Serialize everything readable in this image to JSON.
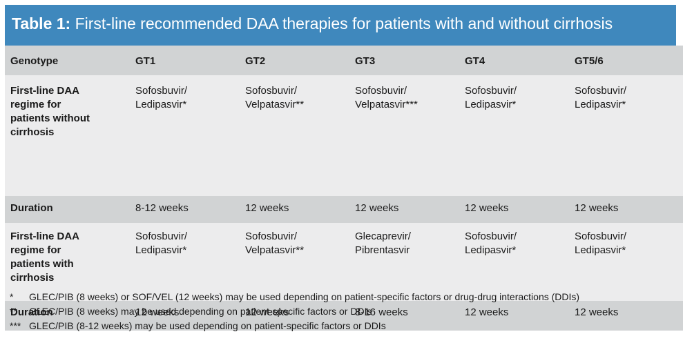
{
  "title": {
    "label": "Table 1:",
    "text": "First-line recommended DAA therapies for patients with and without cirrhosis"
  },
  "table": {
    "headers": [
      "Genotype",
      "GT1",
      "GT2",
      "GT3",
      "GT4",
      "GT5/6"
    ],
    "rows": [
      {
        "label": [
          "First-line DAA",
          "regime for",
          "patients without",
          "cirrhosis"
        ],
        "cells": [
          [
            "Sofosbuvir/",
            "Ledipasvir*"
          ],
          [
            "Sofosbuvir/",
            "Velpatasvir**"
          ],
          [
            "Sofosbuvir/",
            "Velpatasvir***"
          ],
          [
            "Sofosbuvir/",
            "Ledipasvir*"
          ],
          [
            "Sofosbuvir/",
            "Ledipasvir*"
          ]
        ]
      },
      {
        "label": [
          "Duration"
        ],
        "cells": [
          [
            "8-12 weeks"
          ],
          [
            "12 weeks"
          ],
          [
            "12 weeks"
          ],
          [
            "12 weeks"
          ],
          [
            "12 weeks"
          ]
        ]
      },
      {
        "label": [
          "First-line DAA",
          "regime for",
          "patients with",
          "cirrhosis"
        ],
        "cells": [
          [
            "Sofosbuvir/",
            "Ledipasvir*"
          ],
          [
            "Sofosbuvir/",
            "Velpatasvir**"
          ],
          [
            "Glecaprevir/",
            "Pibrentasvir"
          ],
          [
            "Sofosbuvir/",
            "Ledipasvir*"
          ],
          [
            "Sofosbuvir/",
            "Ledipasvir*"
          ]
        ]
      },
      {
        "label": [
          "Duration"
        ],
        "cells": [
          [
            "12 weeks"
          ],
          [
            "12 weeks"
          ],
          [
            "8-16 weeks"
          ],
          [
            "12 weeks"
          ],
          [
            "12 weeks"
          ]
        ]
      }
    ]
  },
  "footnotes": [
    {
      "mark": "*",
      "text": "GLEC/PIB (8 weeks) or SOF/VEL (12 weeks) may be used depending on patient-specific factors or drug-drug interactions (DDIs)"
    },
    {
      "mark": "**",
      "text": "GLEC/PIB (8 weeks) may be used depending on patient-specific factors or DDIs"
    },
    {
      "mark": "***",
      "text": "GLEC/PIB (8-12 weeks) may be used depending on patient-specific factors or DDIs"
    }
  ],
  "colors": {
    "title_bar": "#3f88bd",
    "row_dark": "#d1d3d4",
    "row_light": "#ececed"
  }
}
